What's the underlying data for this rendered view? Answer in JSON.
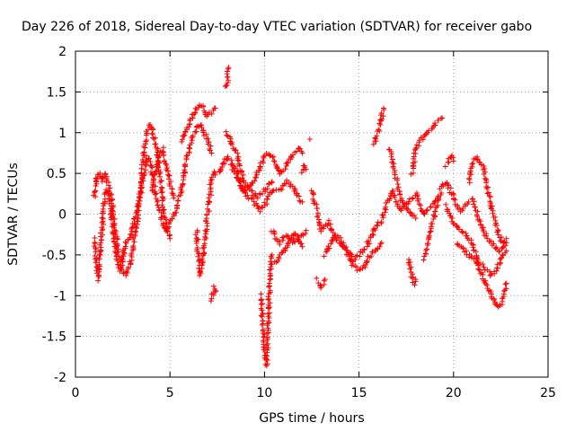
{
  "chart_data": {
    "type": "scatter",
    "title": "Day 226 of 2018, Sidereal Day-to-day VTEC variation (SDTVAR) for receiver gabo",
    "xlabel": "GPS time / hours",
    "ylabel": "SDTVAR / TECUs",
    "xlim": [
      0,
      25
    ],
    "ylim": [
      -2,
      2
    ],
    "xticks": [
      0,
      5,
      10,
      15,
      20,
      25
    ],
    "yticks": [
      -2,
      -1.5,
      -1,
      -0.5,
      0,
      0.5,
      1,
      1.5,
      2
    ],
    "x_tick_labels": [
      "0",
      "5",
      "10",
      "15",
      "20",
      "25"
    ],
    "y_tick_labels": [
      "-2",
      "-1.5",
      "-1",
      "-0.5",
      "0",
      "0.5",
      "1",
      "1.5",
      "2"
    ],
    "grid": true,
    "marker": "+",
    "color": "#ff0000",
    "series": [
      {
        "name": "SDTVAR",
        "tracks": [
          {
            "x": [
              1.0,
              1.1,
              1.2,
              1.3,
              1.4,
              1.5,
              1.6,
              1.8,
              2.0,
              2.2,
              2.4,
              2.6,
              2.8,
              3.0,
              3.2,
              3.4,
              3.6,
              3.8,
              4.0,
              4.2,
              4.4,
              4.6,
              4.8,
              5.0,
              5.2,
              5.4,
              5.6,
              5.8
            ],
            "y": [
              -0.3,
              -0.6,
              -0.8,
              -0.5,
              -0.2,
              0.1,
              0.3,
              0.2,
              -0.2,
              -0.6,
              -0.7,
              -0.4,
              -0.3,
              -0.2,
              0.0,
              0.2,
              0.5,
              0.7,
              0.6,
              0.3,
              0.1,
              -0.1,
              -0.2,
              -0.1,
              0.0,
              0.1,
              0.3,
              0.6
            ]
          },
          {
            "x": [
              1.0,
              1.1,
              1.2,
              1.3,
              1.4,
              1.5,
              1.6,
              1.7,
              1.8,
              1.9,
              2.0,
              2.1,
              2.2,
              2.3,
              2.4,
              2.5
            ],
            "y": [
              0.2,
              0.4,
              0.5,
              0.5,
              0.4,
              0.45,
              0.5,
              0.4,
              0.3,
              0.2,
              0.0,
              -0.2,
              -0.4,
              -0.55,
              -0.6,
              -0.5
            ]
          },
          {
            "x": [
              2.5,
              2.7,
              2.9,
              3.1,
              3.3,
              3.5,
              3.6,
              3.7,
              3.8,
              3.9,
              4.0,
              4.1,
              4.2,
              4.3,
              4.4,
              4.5,
              4.6,
              4.7,
              4.8,
              4.9,
              5.0
            ],
            "y": [
              -0.7,
              -0.75,
              -0.6,
              -0.3,
              0.0,
              0.4,
              0.7,
              0.9,
              1.0,
              1.05,
              1.1,
              1.0,
              0.9,
              0.8,
              0.6,
              0.4,
              0.2,
              0.0,
              -0.1,
              -0.2,
              -0.3
            ]
          },
          {
            "x": [
              4.0,
              4.2,
              4.4,
              4.6,
              4.8,
              5.0,
              5.2
            ],
            "y": [
              0.3,
              0.5,
              0.7,
              0.8,
              0.6,
              0.4,
              0.2
            ]
          },
          {
            "x": [
              5.6,
              5.8,
              6.0,
              6.2,
              6.4,
              6.6,
              6.8,
              7.0,
              7.2,
              7.4
            ],
            "y": [
              0.9,
              1.0,
              1.1,
              1.2,
              1.3,
              1.35,
              1.3,
              1.2,
              1.25,
              1.3
            ]
          },
          {
            "x": [
              5.8,
              6.0,
              6.2,
              6.4,
              6.6,
              6.8,
              7.0,
              7.2
            ],
            "y": [
              0.6,
              0.8,
              0.95,
              1.05,
              1.1,
              1.0,
              0.9,
              0.75
            ]
          },
          {
            "x": [
              6.4,
              6.5,
              6.6,
              6.7,
              6.8,
              6.9,
              7.0,
              7.1,
              7.2,
              7.3,
              7.4
            ],
            "y": [
              -0.2,
              -0.5,
              -0.75,
              -0.6,
              -0.4,
              -0.2,
              0.0,
              0.2,
              0.4,
              0.5,
              0.5
            ]
          },
          {
            "x": [
              7.2,
              7.25,
              7.3,
              7.35,
              7.4
            ],
            "y": [
              -1.05,
              -1.0,
              -0.95,
              -0.9,
              -0.95
            ]
          },
          {
            "x": [
              7.9,
              8.0,
              8.05,
              8.1
            ],
            "y": [
              1.55,
              1.6,
              1.7,
              1.8
            ]
          },
          {
            "x": [
              7.6,
              7.8,
              8.0,
              8.2,
              8.4,
              8.6,
              8.8,
              9.0,
              9.2,
              9.4,
              9.6,
              9.8,
              10.0,
              10.2,
              10.4,
              10.6,
              10.8,
              11.0,
              11.2,
              11.4,
              11.6,
              11.8,
              12.0
            ],
            "y": [
              0.5,
              0.6,
              0.7,
              0.65,
              0.5,
              0.4,
              0.3,
              0.3,
              0.35,
              0.4,
              0.5,
              0.6,
              0.7,
              0.75,
              0.7,
              0.6,
              0.5,
              0.55,
              0.6,
              0.7,
              0.75,
              0.8,
              0.75
            ]
          },
          {
            "x": [
              8.0,
              8.2,
              8.4,
              8.6,
              8.8,
              9.0,
              9.2,
              9.4,
              9.6,
              9.8,
              10.0,
              10.2,
              10.4
            ],
            "y": [
              1.0,
              0.9,
              0.8,
              0.7,
              0.5,
              0.35,
              0.3,
              0.25,
              0.2,
              0.25,
              0.3,
              0.35,
              0.4
            ]
          },
          {
            "x": [
              8.4,
              8.6,
              8.8,
              9.0,
              9.2,
              9.4,
              9.6,
              9.8,
              10.0,
              10.2,
              10.4,
              10.6,
              10.8,
              11.0,
              11.2,
              11.4,
              11.6,
              11.8,
              12.0
            ],
            "y": [
              0.6,
              0.5,
              0.35,
              0.25,
              0.2,
              0.15,
              0.1,
              0.05,
              0.1,
              0.2,
              0.3,
              0.3,
              0.3,
              0.35,
              0.4,
              0.35,
              0.3,
              0.2,
              0.15
            ]
          },
          {
            "x": [
              9.8,
              9.9,
              10.0,
              10.05,
              10.1,
              10.15,
              10.2,
              10.25,
              10.3,
              10.35,
              10.4
            ],
            "y": [
              -1.0,
              -1.3,
              -1.6,
              -1.8,
              -1.85,
              -1.6,
              -1.3,
              -1.0,
              -0.75,
              -0.6,
              -0.5
            ]
          },
          {
            "x": [
              10.4,
              10.6,
              10.8,
              11.0,
              11.2,
              11.4,
              11.6,
              11.8,
              12.0,
              12.2
            ],
            "y": [
              -0.2,
              -0.3,
              -0.35,
              -0.3,
              -0.25,
              -0.3,
              -0.35,
              -0.3,
              -0.25,
              -0.2
            ]
          },
          {
            "x": [
              10.6,
              10.8,
              11.0,
              11.2,
              11.4,
              11.6,
              11.8,
              12.0
            ],
            "y": [
              -0.6,
              -0.5,
              -0.45,
              -0.4,
              -0.3,
              -0.25,
              -0.3,
              -0.4
            ]
          },
          {
            "x": [
              12.0,
              12.1,
              12.2
            ],
            "y": [
              0.5,
              0.6,
              0.55
            ]
          },
          {
            "x": [
              12.4
            ],
            "y": [
              0.92
            ]
          },
          {
            "x": [
              12.5,
              12.6,
              12.7,
              12.8,
              12.9,
              13.0,
              13.2,
              13.4,
              13.6,
              13.8,
              14.0,
              14.2,
              14.4,
              14.6,
              14.8,
              15.0,
              15.2,
              15.4,
              15.6,
              15.8,
              16.0
            ],
            "y": [
              0.3,
              0.2,
              0.1,
              0.0,
              -0.1,
              -0.2,
              -0.15,
              -0.1,
              -0.2,
              -0.3,
              -0.35,
              -0.4,
              -0.45,
              -0.5,
              -0.55,
              -0.5,
              -0.45,
              -0.4,
              -0.3,
              -0.2,
              -0.1
            ]
          },
          {
            "x": [
              12.8,
              12.9,
              13.0,
              13.1,
              13.2
            ],
            "y": [
              -0.8,
              -0.85,
              -0.9,
              -0.85,
              -0.8
            ]
          },
          {
            "x": [
              13.2,
              13.4,
              13.6,
              13.8,
              14.0,
              14.2,
              14.4,
              14.6,
              14.8,
              15.0,
              15.2,
              15.4,
              15.6,
              15.8,
              16.0,
              16.2
            ],
            "y": [
              -0.5,
              -0.4,
              -0.3,
              -0.25,
              -0.3,
              -0.4,
              -0.5,
              -0.6,
              -0.65,
              -0.7,
              -0.65,
              -0.6,
              -0.5,
              -0.45,
              -0.4,
              -0.35
            ]
          },
          {
            "x": [
              15.8,
              15.9,
              16.0,
              16.1,
              16.2,
              16.3
            ],
            "y": [
              0.85,
              0.95,
              1.0,
              1.1,
              1.2,
              1.3
            ]
          },
          {
            "x": [
              16.2,
              16.4,
              16.6,
              16.8,
              17.0,
              17.2,
              17.4,
              17.6,
              17.8,
              18.0,
              18.2,
              18.4,
              18.6,
              18.8,
              19.0,
              19.2
            ],
            "y": [
              -0.1,
              0.1,
              0.2,
              0.3,
              0.15,
              0.05,
              0.1,
              0.15,
              0.2,
              0.25,
              0.1,
              0.0,
              0.05,
              0.1,
              0.15,
              0.2
            ]
          },
          {
            "x": [
              16.6,
              16.8,
              17.0,
              17.2,
              17.4,
              17.6,
              17.8,
              18.0
            ],
            "y": [
              0.8,
              0.6,
              0.4,
              0.2,
              0.1,
              0.05,
              0.0,
              -0.05
            ]
          },
          {
            "x": [
              17.6,
              17.7,
              17.8,
              17.9,
              18.0
            ],
            "y": [
              -0.55,
              -0.65,
              -0.75,
              -0.85,
              -0.8
            ]
          },
          {
            "x": [
              17.8,
              18.0,
              18.2,
              18.4,
              18.6,
              18.8,
              19.0,
              19.2,
              19.4
            ],
            "y": [
              0.5,
              0.8,
              0.9,
              0.95,
              1.0,
              1.05,
              1.1,
              1.15,
              1.18
            ]
          },
          {
            "x": [
              18.4,
              18.6,
              18.8,
              19.0,
              19.2,
              19.4,
              19.6,
              19.8,
              20.0,
              20.2,
              20.4,
              20.6,
              20.8
            ],
            "y": [
              -0.55,
              -0.4,
              -0.2,
              0.0,
              0.2,
              0.35,
              0.4,
              0.3,
              0.2,
              0.1,
              0.05,
              0.1,
              0.15
            ]
          },
          {
            "x": [
              19.6,
              19.7,
              19.8,
              19.9,
              20.0
            ],
            "y": [
              0.6,
              0.65,
              0.7,
              0.7,
              0.65
            ]
          },
          {
            "x": [
              19.6,
              19.8,
              20.0,
              20.2,
              20.4,
              20.6,
              20.8,
              21.0,
              21.2,
              21.4,
              21.6,
              21.8,
              22.0,
              22.2,
              22.4,
              22.6,
              22.8
            ],
            "y": [
              0.1,
              0.0,
              -0.1,
              -0.15,
              -0.2,
              -0.25,
              -0.3,
              -0.4,
              -0.5,
              -0.6,
              -0.65,
              -0.7,
              -0.75,
              -0.7,
              -0.6,
              -0.5,
              -0.45
            ]
          },
          {
            "x": [
              20.2,
              20.4,
              20.6,
              20.8,
              21.0,
              21.2,
              21.4,
              21.6,
              21.8,
              22.0,
              22.2,
              22.4,
              22.6,
              22.8
            ],
            "y": [
              -0.35,
              -0.4,
              -0.45,
              -0.5,
              -0.55,
              -0.6,
              -0.7,
              -0.8,
              -0.9,
              -1.0,
              -1.1,
              -1.15,
              -1.05,
              -0.85
            ]
          },
          {
            "x": [
              20.8,
              21.0,
              21.2,
              21.4,
              21.6,
              21.8,
              22.0,
              22.2,
              22.4,
              22.6,
              22.8
            ],
            "y": [
              0.4,
              0.6,
              0.7,
              0.65,
              0.55,
              0.3,
              0.1,
              -0.1,
              -0.25,
              -0.35,
              -0.3
            ]
          },
          {
            "x": [
              21.0,
              21.2,
              21.4,
              21.6,
              21.8,
              22.0,
              22.2,
              22.4,
              22.6,
              22.8
            ],
            "y": [
              0.2,
              0.05,
              -0.1,
              -0.2,
              -0.3,
              -0.35,
              -0.4,
              -0.45,
              -0.4,
              -0.35
            ]
          }
        ]
      }
    ]
  }
}
